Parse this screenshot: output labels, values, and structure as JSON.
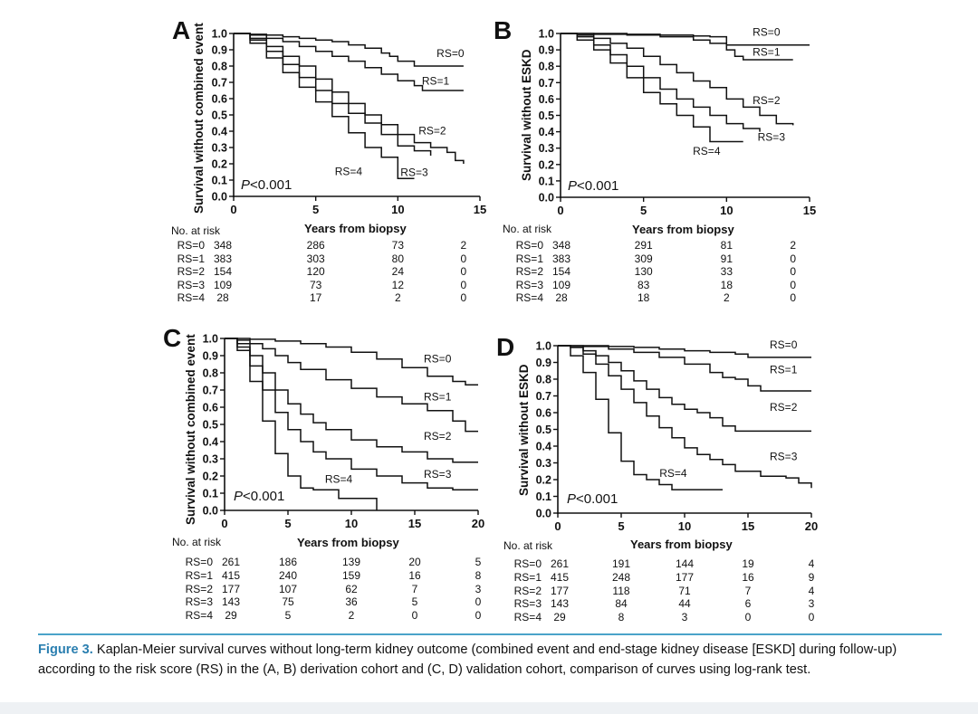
{
  "caption": {
    "figure_label": "Figure 3.",
    "text": "Kaplan-Meier survival curves without long-term kidney outcome (combined event and end-stage kidney disease [ESKD] during follow-up) according to the risk score (RS) in the (A, B) derivation cohort and (C, D) validation cohort, comparison of curves using log-rank test."
  },
  "risk_table_title": "No. at risk",
  "chart_data": [
    {
      "id": "A",
      "type": "line",
      "panel_letter": "A",
      "ylabel": "Survival without combined event",
      "xlabel": "Years from biopsy",
      "p_value": "<0.001",
      "xlim": [
        0,
        15
      ],
      "ylim": [
        0,
        1
      ],
      "xticks": [
        "0",
        "5",
        "10",
        "15"
      ],
      "yticks": [
        "0.0",
        "0.1",
        "0.2",
        "0.3",
        "0.4",
        "0.5",
        "0.6",
        "0.7",
        "0.8",
        "0.9",
        "1.0"
      ],
      "series": [
        {
          "name": "RS=0",
          "x": [
            0,
            1,
            2,
            3,
            4,
            5,
            6,
            7,
            8,
            9,
            9.5,
            10,
            11,
            12,
            13,
            14
          ],
          "y": [
            1.0,
            0.995,
            0.99,
            0.98,
            0.97,
            0.96,
            0.95,
            0.93,
            0.91,
            0.88,
            0.86,
            0.83,
            0.8,
            0.8,
            0.8,
            0.8
          ]
        },
        {
          "name": "RS=1",
          "x": [
            0,
            1,
            2,
            3,
            4,
            5,
            6,
            7,
            8,
            9,
            10,
            11,
            11.5,
            12,
            13,
            14
          ],
          "y": [
            1.0,
            0.99,
            0.97,
            0.95,
            0.92,
            0.89,
            0.86,
            0.83,
            0.79,
            0.75,
            0.71,
            0.68,
            0.65,
            0.65,
            0.65,
            0.65
          ]
        },
        {
          "name": "RS=2",
          "x": [
            0,
            1,
            2,
            3,
            4,
            5,
            6,
            7,
            8,
            9,
            10,
            11,
            12,
            13,
            13.5,
            14
          ],
          "y": [
            1.0,
            0.97,
            0.92,
            0.86,
            0.8,
            0.72,
            0.64,
            0.57,
            0.5,
            0.44,
            0.38,
            0.33,
            0.3,
            0.27,
            0.22,
            0.2
          ]
        },
        {
          "name": "RS=3",
          "x": [
            0,
            1,
            2,
            3,
            4,
            5,
            6,
            7,
            8,
            9,
            10,
            11,
            12
          ],
          "y": [
            1.0,
            0.96,
            0.89,
            0.81,
            0.73,
            0.65,
            0.57,
            0.51,
            0.45,
            0.38,
            0.31,
            0.28,
            0.25
          ]
        },
        {
          "name": "RS=4",
          "x": [
            0,
            1,
            2,
            3,
            4,
            5,
            6,
            7,
            8,
            9,
            10,
            11
          ],
          "y": [
            1.0,
            0.94,
            0.85,
            0.76,
            0.67,
            0.58,
            0.49,
            0.39,
            0.3,
            0.24,
            0.11,
            0.11
          ]
        }
      ],
      "labels": [
        {
          "text": "RS=0",
          "x": 13.2,
          "y": 0.855
        },
        {
          "text": "RS=1",
          "x": 12.3,
          "y": 0.685
        },
        {
          "text": "RS=2",
          "x": 12.1,
          "y": 0.38
        },
        {
          "text": "RS=3",
          "x": 11.0,
          "y": 0.125
        },
        {
          "text": "RS=4",
          "x": 7.0,
          "y": 0.13
        }
      ],
      "risk_ticks": [
        0,
        5,
        10,
        14
      ],
      "risk_rows": [
        {
          "label": "RS=0",
          "values": [
            "348",
            "286",
            "73",
            "2"
          ]
        },
        {
          "label": "RS=1",
          "values": [
            "383",
            "303",
            "80",
            "0"
          ]
        },
        {
          "label": "RS=2",
          "values": [
            "154",
            "120",
            "24",
            "0"
          ]
        },
        {
          "label": "RS=3",
          "values": [
            "109",
            "73",
            "12",
            "0"
          ]
        },
        {
          "label": "RS=4",
          "values": [
            "28",
            "17",
            "2",
            "0"
          ]
        }
      ]
    },
    {
      "id": "B",
      "type": "line",
      "panel_letter": "B",
      "ylabel": "Survival without ESKD",
      "xlabel": "Years from biopsy",
      "p_value": "<0.001",
      "xlim": [
        0,
        15
      ],
      "ylim": [
        0,
        1
      ],
      "xticks": [
        "0",
        "5",
        "10",
        "15"
      ],
      "yticks": [
        "0.0",
        "0.1",
        "0.2",
        "0.3",
        "0.4",
        "0.5",
        "0.6",
        "0.7",
        "0.8",
        "0.9",
        "1.0"
      ],
      "series": [
        {
          "name": "RS=0",
          "x": [
            0,
            2,
            4,
            6,
            8,
            9,
            10,
            11,
            12,
            13,
            14,
            15
          ],
          "y": [
            1.0,
            1.0,
            0.995,
            0.99,
            0.985,
            0.98,
            0.93,
            0.93,
            0.93,
            0.93,
            0.93,
            0.93
          ]
        },
        {
          "name": "RS=1",
          "x": [
            0,
            2,
            4,
            6,
            8,
            9,
            10,
            10.5,
            11,
            12,
            13,
            14
          ],
          "y": [
            1.0,
            0.995,
            0.99,
            0.98,
            0.96,
            0.94,
            0.9,
            0.86,
            0.84,
            0.84,
            0.84,
            0.84
          ]
        },
        {
          "name": "RS=2",
          "x": [
            0,
            1,
            2,
            3,
            4,
            5,
            6,
            7,
            8,
            9,
            10,
            11,
            12,
            13,
            14
          ],
          "y": [
            1.0,
            0.99,
            0.97,
            0.94,
            0.91,
            0.86,
            0.81,
            0.76,
            0.71,
            0.67,
            0.6,
            0.55,
            0.5,
            0.45,
            0.44
          ]
        },
        {
          "name": "RS=3",
          "x": [
            0,
            1,
            2,
            3,
            4,
            5,
            6,
            7,
            8,
            9,
            10,
            11,
            12
          ],
          "y": [
            1.0,
            0.98,
            0.93,
            0.87,
            0.8,
            0.73,
            0.66,
            0.6,
            0.55,
            0.5,
            0.45,
            0.42,
            0.4
          ]
        },
        {
          "name": "RS=4",
          "x": [
            0,
            1,
            2,
            3,
            4,
            5,
            6,
            7,
            8,
            9,
            10,
            11
          ],
          "y": [
            1.0,
            0.96,
            0.9,
            0.82,
            0.73,
            0.64,
            0.57,
            0.5,
            0.43,
            0.34,
            0.34,
            0.34
          ]
        }
      ],
      "labels": [
        {
          "text": "RS=0",
          "x": 12.4,
          "y": 0.985
        },
        {
          "text": "RS=1",
          "x": 12.4,
          "y": 0.865
        },
        {
          "text": "RS=2",
          "x": 12.4,
          "y": 0.57
        },
        {
          "text": "RS=3",
          "x": 12.7,
          "y": 0.345
        },
        {
          "text": "RS=4",
          "x": 8.8,
          "y": 0.26
        }
      ],
      "risk_ticks": [
        0,
        5,
        10,
        14
      ],
      "risk_rows": [
        {
          "label": "RS=0",
          "values": [
            "348",
            "291",
            "81",
            "2"
          ]
        },
        {
          "label": "RS=1",
          "values": [
            "383",
            "309",
            "91",
            "0"
          ]
        },
        {
          "label": "RS=2",
          "values": [
            "154",
            "130",
            "33",
            "0"
          ]
        },
        {
          "label": "RS=3",
          "values": [
            "109",
            "83",
            "18",
            "0"
          ]
        },
        {
          "label": "RS=4",
          "values": [
            "28",
            "18",
            "2",
            "0"
          ]
        }
      ]
    },
    {
      "id": "C",
      "type": "line",
      "panel_letter": "C",
      "ylabel": "Survival without combined event",
      "xlabel": "Years from biopsy",
      "p_value": "<0.001",
      "xlim": [
        0,
        20
      ],
      "ylim": [
        0,
        1
      ],
      "xticks": [
        "0",
        "5",
        "10",
        "15",
        "20"
      ],
      "yticks": [
        "0.0",
        "0.1",
        "0.2",
        "0.3",
        "0.4",
        "0.5",
        "0.6",
        "0.7",
        "0.8",
        "0.9",
        "1.0"
      ],
      "series": [
        {
          "name": "RS=0",
          "x": [
            0,
            2,
            4,
            6,
            8,
            10,
            12,
            14,
            16,
            18,
            19,
            20
          ],
          "y": [
            1.0,
            0.995,
            0.985,
            0.97,
            0.95,
            0.92,
            0.88,
            0.83,
            0.78,
            0.75,
            0.73,
            0.73
          ]
        },
        {
          "name": "RS=1",
          "x": [
            0,
            1,
            2,
            3,
            4,
            5,
            6,
            8,
            10,
            12,
            14,
            16,
            18,
            19,
            20
          ],
          "y": [
            1.0,
            0.99,
            0.97,
            0.94,
            0.9,
            0.86,
            0.82,
            0.76,
            0.71,
            0.66,
            0.62,
            0.58,
            0.52,
            0.46,
            0.46
          ]
        },
        {
          "name": "RS=2",
          "x": [
            0,
            1,
            2,
            3,
            4,
            5,
            6,
            7,
            8,
            10,
            12,
            14,
            16,
            18,
            20
          ],
          "y": [
            1.0,
            0.97,
            0.9,
            0.8,
            0.7,
            0.62,
            0.56,
            0.51,
            0.47,
            0.41,
            0.37,
            0.34,
            0.3,
            0.28,
            0.28
          ]
        },
        {
          "name": "RS=3",
          "x": [
            0,
            1,
            2,
            3,
            4,
            5,
            6,
            7,
            8,
            10,
            12,
            14,
            16,
            18,
            20
          ],
          "y": [
            1.0,
            0.95,
            0.84,
            0.7,
            0.57,
            0.47,
            0.4,
            0.34,
            0.3,
            0.24,
            0.2,
            0.16,
            0.13,
            0.12,
            0.12
          ]
        },
        {
          "name": "RS=4",
          "x": [
            0,
            1,
            2,
            3,
            4,
            5,
            6,
            7,
            8,
            9,
            10,
            11,
            12
          ],
          "y": [
            1.0,
            0.93,
            0.75,
            0.52,
            0.33,
            0.2,
            0.13,
            0.12,
            0.12,
            0.07,
            0.07,
            0.07,
            0.0
          ]
        }
      ],
      "labels": [
        {
          "text": "RS=0",
          "x": 16.8,
          "y": 0.86
        },
        {
          "text": "RS=1",
          "x": 16.8,
          "y": 0.64
        },
        {
          "text": "RS=2",
          "x": 16.8,
          "y": 0.41
        },
        {
          "text": "RS=3",
          "x": 16.8,
          "y": 0.19
        },
        {
          "text": "RS=4",
          "x": 9.0,
          "y": 0.16
        }
      ],
      "risk_ticks": [
        0,
        5,
        10,
        15,
        20
      ],
      "risk_rows": [
        {
          "label": "RS=0",
          "values": [
            "261",
            "186",
            "139",
            "20",
            "5"
          ]
        },
        {
          "label": "RS=1",
          "values": [
            "415",
            "240",
            "159",
            "16",
            "8"
          ]
        },
        {
          "label": "RS=2",
          "values": [
            "177",
            "107",
            "62",
            "7",
            "3"
          ]
        },
        {
          "label": "RS=3",
          "values": [
            "143",
            "75",
            "36",
            "5",
            "0"
          ]
        },
        {
          "label": "RS=4",
          "values": [
            "29",
            "5",
            "2",
            "0",
            "0"
          ]
        }
      ]
    },
    {
      "id": "D",
      "type": "line",
      "panel_letter": "D",
      "ylabel": "Survival without ESKD",
      "xlabel": "Years from biopsy",
      "p_value": "<0.001",
      "xlim": [
        0,
        20
      ],
      "ylim": [
        0,
        1
      ],
      "xticks": [
        "0",
        "5",
        "10",
        "15",
        "20"
      ],
      "yticks": [
        "0.0",
        "0.1",
        "0.2",
        "0.3",
        "0.4",
        "0.5",
        "0.6",
        "0.7",
        "0.8",
        "0.9",
        "1.0"
      ],
      "series": [
        {
          "name": "RS=0",
          "x": [
            0,
            2,
            4,
            6,
            8,
            10,
            12,
            14,
            15,
            16,
            18,
            20
          ],
          "y": [
            1.0,
            1.0,
            0.995,
            0.99,
            0.98,
            0.97,
            0.96,
            0.95,
            0.93,
            0.93,
            0.93,
            0.93
          ]
        },
        {
          "name": "RS=1",
          "x": [
            0,
            2,
            4,
            6,
            8,
            10,
            12,
            13,
            14,
            15,
            16,
            18,
            20
          ],
          "y": [
            1.0,
            0.995,
            0.98,
            0.96,
            0.93,
            0.89,
            0.84,
            0.81,
            0.8,
            0.76,
            0.73,
            0.73,
            0.73
          ]
        },
        {
          "name": "RS=2",
          "x": [
            0,
            1,
            2,
            3,
            4,
            5,
            6,
            7,
            8,
            9,
            10,
            11,
            12,
            13,
            14,
            16,
            18,
            20
          ],
          "y": [
            1.0,
            0.99,
            0.97,
            0.94,
            0.9,
            0.85,
            0.79,
            0.74,
            0.69,
            0.65,
            0.62,
            0.6,
            0.57,
            0.52,
            0.49,
            0.49,
            0.49,
            0.49
          ]
        },
        {
          "name": "RS=3",
          "x": [
            0,
            1,
            2,
            3,
            4,
            5,
            6,
            7,
            8,
            9,
            10,
            11,
            12,
            13,
            14,
            16,
            18,
            19,
            20
          ],
          "y": [
            1.0,
            0.99,
            0.95,
            0.89,
            0.82,
            0.74,
            0.66,
            0.58,
            0.51,
            0.45,
            0.39,
            0.35,
            0.32,
            0.29,
            0.25,
            0.22,
            0.21,
            0.18,
            0.15
          ]
        },
        {
          "name": "RS=4",
          "x": [
            0,
            1,
            2,
            3,
            4,
            5,
            6,
            7,
            8,
            9,
            10,
            11,
            12,
            13
          ],
          "y": [
            1.0,
            0.94,
            0.84,
            0.68,
            0.48,
            0.31,
            0.23,
            0.2,
            0.17,
            0.14,
            0.14,
            0.14,
            0.14,
            0.14
          ]
        }
      ],
      "labels": [
        {
          "text": "RS=0",
          "x": 17.8,
          "y": 0.985
        },
        {
          "text": "RS=1",
          "x": 17.8,
          "y": 0.835
        },
        {
          "text": "RS=2",
          "x": 17.8,
          "y": 0.61
        },
        {
          "text": "RS=3",
          "x": 17.8,
          "y": 0.315
        },
        {
          "text": "RS=4",
          "x": 9.1,
          "y": 0.215
        }
      ],
      "risk_ticks": [
        0,
        5,
        10,
        15,
        20
      ],
      "risk_rows": [
        {
          "label": "RS=0",
          "values": [
            "261",
            "191",
            "144",
            "19",
            "4"
          ]
        },
        {
          "label": "RS=1",
          "values": [
            "415",
            "248",
            "177",
            "16",
            "9"
          ]
        },
        {
          "label": "RS=2",
          "values": [
            "177",
            "118",
            "71",
            "7",
            "4"
          ]
        },
        {
          "label": "RS=3",
          "values": [
            "143",
            "84",
            "44",
            "6",
            "3"
          ]
        },
        {
          "label": "RS=4",
          "values": [
            "29",
            "8",
            "3",
            "0",
            "0"
          ]
        }
      ]
    }
  ]
}
